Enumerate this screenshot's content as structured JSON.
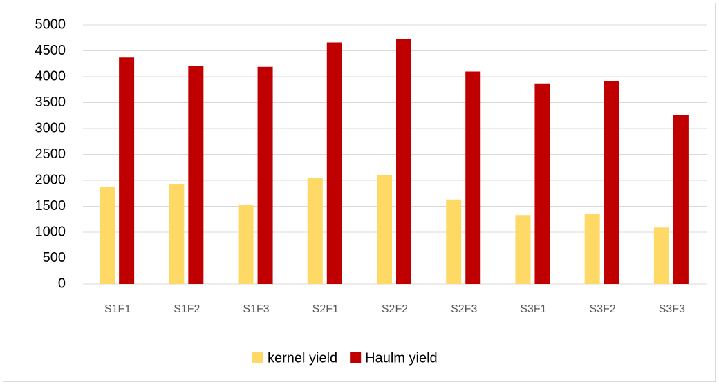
{
  "chart_data": {
    "type": "bar",
    "categories": [
      "S1F1",
      "S1F2",
      "S1F3",
      "S2F1",
      "S2F2",
      "S2F3",
      "S3F1",
      "S3F2",
      "S3F3"
    ],
    "series": [
      {
        "name": "kernel yield",
        "color": "#ffd966",
        "values": [
          1880,
          1930,
          1520,
          2040,
          2100,
          1630,
          1330,
          1360,
          1090
        ]
      },
      {
        "name": "Haulm yield",
        "color": "#c00000",
        "values": [
          4370,
          4200,
          4190,
          4660,
          4730,
          4100,
          3870,
          3920,
          3260
        ]
      }
    ],
    "ylim": [
      0,
      5000
    ],
    "yticks": [
      0,
      500,
      1000,
      1500,
      2000,
      2500,
      3000,
      3500,
      4000,
      4500,
      5000
    ],
    "grid": true,
    "legend": "bottom"
  }
}
